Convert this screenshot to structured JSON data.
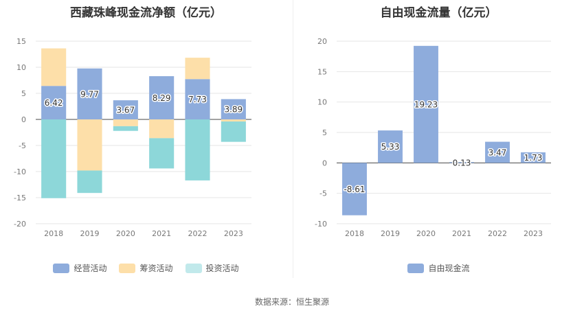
{
  "chart_data": [
    {
      "type": "bar",
      "stacked": true,
      "title": "西藏珠峰现金流净额（亿元）",
      "categories": [
        "2018",
        "2019",
        "2020",
        "2021",
        "2022",
        "2023"
      ],
      "series": [
        {
          "name": "经营活动",
          "values": [
            6.42,
            9.77,
            3.67,
            8.29,
            7.73,
            3.89
          ],
          "color": "#8eacdc",
          "labels": [
            "6.42",
            "9.77",
            "3.67",
            "8.29",
            "7.73",
            "3.89"
          ]
        },
        {
          "name": "筹资活动",
          "values": [
            7.2,
            -9.8,
            -1.3,
            -3.6,
            4.1,
            -0.4
          ],
          "color": "#fddfa9"
        },
        {
          "name": "投资活动",
          "values": [
            -15.1,
            -4.3,
            -0.9,
            -5.8,
            -11.7,
            -3.9
          ],
          "color": "#8dd7d9"
        }
      ],
      "legend_colors": [
        "#8eacdc",
        "#fddfa9",
        "#c1e9eb"
      ],
      "ylim": [
        -20,
        15
      ],
      "yticks": [
        15,
        10,
        5,
        0,
        -5,
        -10,
        -15,
        -20
      ],
      "legend_position": "bottom"
    },
    {
      "type": "bar",
      "title": "自由现金流量（亿元）",
      "categories": [
        "2018",
        "2019",
        "2020",
        "2021",
        "2022",
        "2023"
      ],
      "series": [
        {
          "name": "自由现金流",
          "values": [
            -8.61,
            5.33,
            19.23,
            0.13,
            3.47,
            1.73
          ],
          "color": "#8eacdc",
          "labels": [
            "-8.61",
            "5.33",
            "19.23",
            "0.13",
            "3.47",
            "1.73"
          ]
        }
      ],
      "ylim": [
        -10,
        20
      ],
      "yticks": [
        20,
        15,
        10,
        5,
        0,
        -5,
        -10
      ],
      "legend_position": "bottom"
    }
  ],
  "footer": "数据来源：恒生聚源"
}
